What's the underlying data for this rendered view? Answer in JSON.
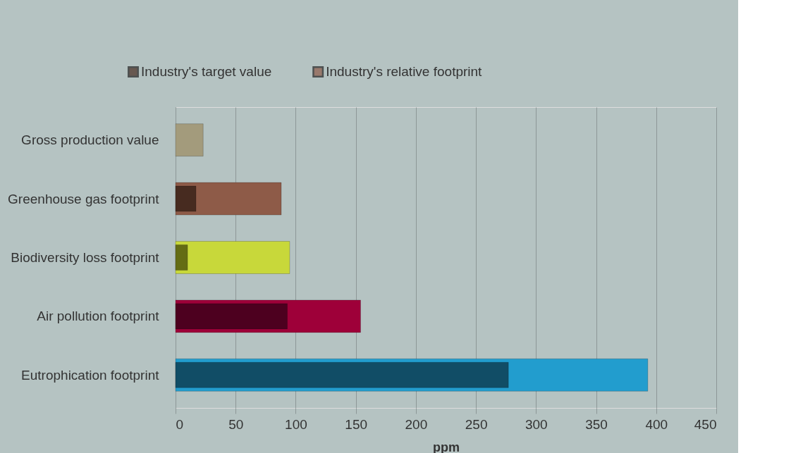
{
  "chart_data": {
    "type": "bar",
    "orientation": "horizontal",
    "xlabel": "ppm",
    "categories": [
      "Gross production value",
      "Greenhouse gas footprint",
      "Biodiversity loss footprint",
      "Air pollution footprint",
      "Eutrophication footprint"
    ],
    "series": [
      {
        "name": "Industry's target value",
        "color": "#472b20",
        "colors": [
          null,
          "#472b20",
          "#646c14",
          "#4d001f",
          "#114d66"
        ],
        "values": [
          null,
          17,
          10,
          93,
          277
        ]
      },
      {
        "name": "Industry's relative footprint",
        "color": "#8e5b48",
        "colors": [
          "#a39b7c",
          "#8e5b48",
          "#c8d83a",
          "#9e0039",
          "#229dce"
        ],
        "values": [
          23,
          88,
          95,
          154,
          393
        ]
      }
    ],
    "xlim": [
      0,
      450
    ],
    "xticks": [
      0,
      50,
      100,
      150,
      200,
      250,
      300,
      350,
      400,
      450
    ],
    "grid": "x",
    "legend": "top"
  }
}
